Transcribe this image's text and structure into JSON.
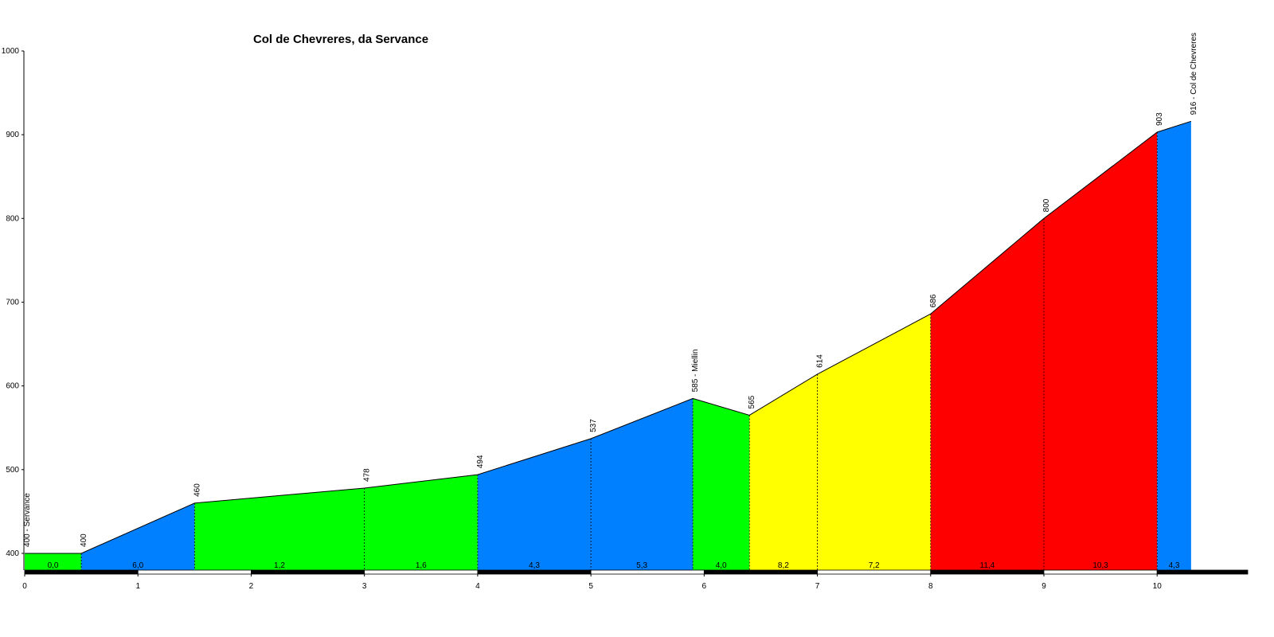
{
  "chart_data": {
    "type": "elevation-profile",
    "title": "Col de Chevreres, da Servance",
    "x": [
      0,
      0.5,
      1.5,
      3,
      4,
      5,
      5.9,
      6.4,
      7,
      8,
      9,
      10,
      10.3
    ],
    "elevation": [
      400,
      400,
      460,
      478,
      494,
      537,
      585,
      565,
      614,
      686,
      800,
      903,
      916
    ],
    "elevation_labels": [
      "400 - Servance",
      "400",
      "460",
      "478",
      "494",
      "537",
      "585 - Miellin",
      "565",
      "614",
      "686",
      "800",
      "903",
      "916 - Col de Chevreres"
    ],
    "grades": [
      0.0,
      6.0,
      1.2,
      1.6,
      4.3,
      5.3,
      4.0,
      8.2,
      7.2,
      11.4,
      10.3,
      4.3
    ],
    "grade_labels": [
      "0,0",
      "6,0",
      "1,2",
      "1,6",
      "4,3",
      "5,3",
      "4,0",
      "8,2",
      "7,2",
      "11,4",
      "10,3",
      "4,3"
    ],
    "grade_colors": [
      "#00ff00",
      "#0080ff",
      "#00ff00",
      "#00ff00",
      "#0080ff",
      "#0080ff",
      "#00ff00",
      "#ffff00",
      "#ffff00",
      "#ff0000",
      "#ff0000",
      "#0080ff"
    ],
    "xlim": [
      0,
      10.8
    ],
    "xticks": [
      0,
      1,
      2,
      3,
      4,
      5,
      6,
      7,
      8,
      9,
      10
    ],
    "ylim": [
      380,
      1000
    ],
    "yticks": [
      400,
      500,
      600,
      700,
      800,
      900,
      1000
    ]
  }
}
